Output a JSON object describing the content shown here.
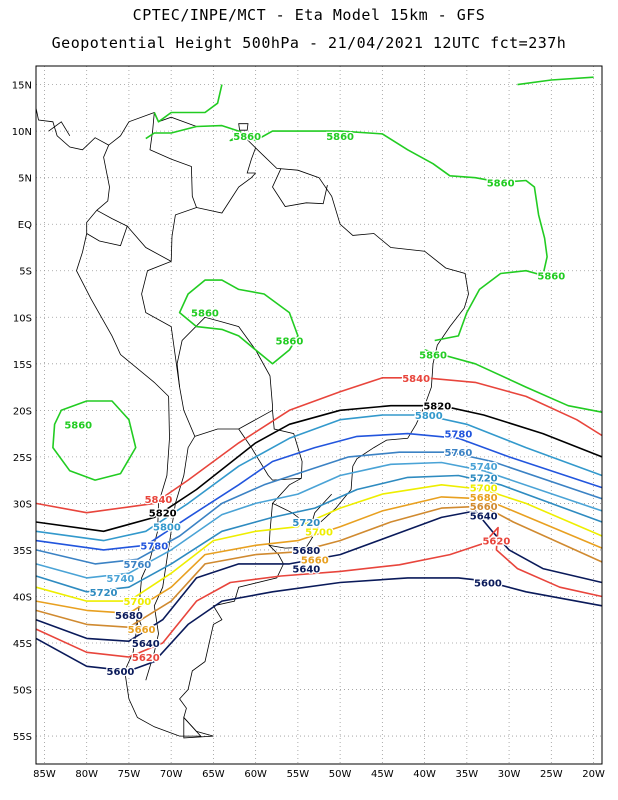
{
  "header": {
    "line1": "CPTEC/INPE/MCT -  Eta Model 15km - GFS",
    "line2": "Geopotential Height 500hPa - 21/04/2021 12UTC fct=237h"
  },
  "axes": {
    "lat_labels": [
      "15N",
      "10N",
      "5N",
      "EQ",
      "5S",
      "10S",
      "15S",
      "20S",
      "25S",
      "30S",
      "35S",
      "40S",
      "45S",
      "50S",
      "55S"
    ],
    "lon_labels": [
      "85W",
      "80W",
      "75W",
      "70W",
      "65W",
      "60W",
      "55W",
      "50W",
      "45W",
      "40W",
      "35W",
      "30W",
      "25W",
      "20W"
    ]
  },
  "colors": {
    "c5860": "#22cc22",
    "c5840": "#e8453c",
    "c5820": "#000000",
    "c5800": "#3399cc",
    "c5780": "#2255dd",
    "c5760": "#3b82c4",
    "c5740": "#4aa3d6",
    "c5720": "#2e8bc0",
    "c5700": "#eeee00",
    "c5680": "#e8a020",
    "c5660": "#d08a30",
    "c5640": "#0a1a5a",
    "c5620": "#e8453c",
    "c5600": "#0a1a5a"
  },
  "contour_labels": [
    {
      "text": "5860",
      "color": "#22cc22",
      "lon": -61,
      "lat": 9.5
    },
    {
      "text": "5860",
      "color": "#22cc22",
      "lon": -50,
      "lat": 9.5
    },
    {
      "text": "5860",
      "color": "#22cc22",
      "lon": -31,
      "lat": 4.5
    },
    {
      "text": "5860",
      "color": "#22cc22",
      "lon": -25,
      "lat": -5.5
    },
    {
      "text": "5860",
      "color": "#22cc22",
      "lon": -66,
      "lat": -9.5
    },
    {
      "text": "5860",
      "color": "#22cc22",
      "lon": -56,
      "lat": -12.5
    },
    {
      "text": "5860",
      "color": "#22cc22",
      "lon": -39,
      "lat": -14
    },
    {
      "text": "5860",
      "color": "#22cc22",
      "lon": -81,
      "lat": -21.5
    },
    {
      "text": "5840",
      "color": "#e8453c",
      "lon": -41,
      "lat": -16.5
    },
    {
      "text": "5820",
      "color": "#000000",
      "lon": -38.5,
      "lat": -19.5
    },
    {
      "text": "5800",
      "color": "#3399cc",
      "lon": -39.5,
      "lat": -20.5
    },
    {
      "text": "5780",
      "color": "#2255dd",
      "lon": -36,
      "lat": -22.5
    },
    {
      "text": "5760",
      "color": "#3b82c4",
      "lon": -36,
      "lat": -24.5
    },
    {
      "text": "5740",
      "color": "#4aa3d6",
      "lon": -33,
      "lat": -26
    },
    {
      "text": "5720",
      "color": "#2e8bc0",
      "lon": -33,
      "lat": -27.2
    },
    {
      "text": "5700",
      "color": "#eeee00",
      "lon": -33,
      "lat": -28.3
    },
    {
      "text": "5680",
      "color": "#e8a020",
      "lon": -33,
      "lat": -29.3
    },
    {
      "text": "5660",
      "color": "#d08a30",
      "lon": -33,
      "lat": -30.3
    },
    {
      "text": "5640",
      "color": "#0a1a5a",
      "lon": -33,
      "lat": -31.3
    },
    {
      "text": "5620",
      "color": "#e8453c",
      "lon": -31.5,
      "lat": -34
    },
    {
      "text": "5600",
      "color": "#0a1a5a",
      "lon": -32.5,
      "lat": -38.5
    },
    {
      "text": "5840",
      "color": "#e8453c",
      "lon": -71.5,
      "lat": -29.5
    },
    {
      "text": "5820",
      "color": "#000000",
      "lon": -71,
      "lat": -31
    },
    {
      "text": "5800",
      "color": "#3399cc",
      "lon": -70.5,
      "lat": -32.5
    },
    {
      "text": "5780",
      "color": "#2255dd",
      "lon": -72,
      "lat": -34.5
    },
    {
      "text": "5760",
      "color": "#3b82c4",
      "lon": -74,
      "lat": -36.5
    },
    {
      "text": "5740",
      "color": "#4aa3d6",
      "lon": -76,
      "lat": -38
    },
    {
      "text": "5720",
      "color": "#2e8bc0",
      "lon": -78,
      "lat": -39.5
    },
    {
      "text": "5700",
      "color": "#eeee00",
      "lon": -74,
      "lat": -40.5
    },
    {
      "text": "5680",
      "color": "#0a1a5a",
      "lon": -75,
      "lat": -42
    },
    {
      "text": "5660",
      "color": "#e8a020",
      "lon": -73.5,
      "lat": -43.5
    },
    {
      "text": "5640",
      "color": "#0a1a5a",
      "lon": -73,
      "lat": -45
    },
    {
      "text": "5620",
      "color": "#e8453c",
      "lon": -73,
      "lat": -46.5
    },
    {
      "text": "5600",
      "color": "#0a1a5a",
      "lon": -76,
      "lat": -48
    },
    {
      "text": "5720",
      "color": "#2e8bc0",
      "lon": -54,
      "lat": -32
    },
    {
      "text": "5700",
      "color": "#eeee00",
      "lon": -52.5,
      "lat": -33
    },
    {
      "text": "5680",
      "color": "#0a1a5a",
      "lon": -54,
      "lat": -35
    },
    {
      "text": "5660",
      "color": "#e8a020",
      "lon": -53,
      "lat": -36
    },
    {
      "text": "5640",
      "color": "#0a1a5a",
      "lon": -54,
      "lat": -37
    }
  ]
}
